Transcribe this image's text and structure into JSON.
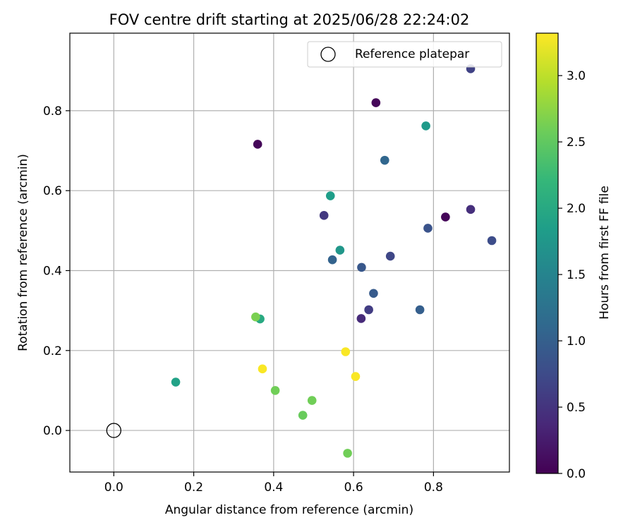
{
  "chart_data": {
    "type": "scatter",
    "title": "FOV centre drift starting at 2025/06/28 22:24:02",
    "xlabel": "Angular distance from reference (arcmin)",
    "ylabel": "Rotation from reference (arcmin)",
    "xlim": [
      -0.11,
      0.99
    ],
    "ylim": [
      -0.104,
      0.994
    ],
    "xticks": [
      0.0,
      0.2,
      0.4,
      0.6,
      0.8
    ],
    "xtick_labels": [
      "0.0",
      "0.2",
      "0.4",
      "0.6",
      "0.8"
    ],
    "yticks": [
      0.0,
      0.2,
      0.4,
      0.6,
      0.8
    ],
    "ytick_labels": [
      "0.0",
      "0.2",
      "0.4",
      "0.6",
      "0.8"
    ],
    "grid": true,
    "legend_position": "top-right",
    "legend_entries": [
      "Reference platepar"
    ],
    "reference_point": {
      "x": 0.0,
      "y": 0.0,
      "label": "Reference platepar"
    },
    "colormap": "viridis",
    "colorbar": {
      "label": "Hours from first FF file",
      "range": [
        0.0,
        3.32
      ],
      "ticks": [
        0.0,
        0.5,
        1.0,
        1.5,
        2.0,
        2.5,
        3.0
      ],
      "tick_labels": [
        "0.0",
        "0.5",
        "1.0",
        "1.5",
        "2.0",
        "2.5",
        "3.0"
      ]
    },
    "points": [
      {
        "x": 0.36,
        "y": 0.716,
        "c": 0.05
      },
      {
        "x": 0.656,
        "y": 0.82,
        "c": 0.05
      },
      {
        "x": 0.83,
        "y": 0.534,
        "c": 0.05
      },
      {
        "x": 0.893,
        "y": 0.553,
        "c": 0.45
      },
      {
        "x": 0.619,
        "y": 0.28,
        "c": 0.4
      },
      {
        "x": 0.526,
        "y": 0.538,
        "c": 0.55
      },
      {
        "x": 0.638,
        "y": 0.302,
        "c": 0.6
      },
      {
        "x": 0.893,
        "y": 0.905,
        "c": 0.65
      },
      {
        "x": 0.692,
        "y": 0.436,
        "c": 0.7
      },
      {
        "x": 0.946,
        "y": 0.475,
        "c": 0.78
      },
      {
        "x": 0.786,
        "y": 0.506,
        "c": 0.85
      },
      {
        "x": 0.62,
        "y": 0.408,
        "c": 0.9
      },
      {
        "x": 0.65,
        "y": 0.343,
        "c": 0.95
      },
      {
        "x": 0.766,
        "y": 0.302,
        "c": 1.0
      },
      {
        "x": 0.547,
        "y": 0.427,
        "c": 1.05
      },
      {
        "x": 0.678,
        "y": 0.676,
        "c": 1.1
      },
      {
        "x": 0.566,
        "y": 0.451,
        "c": 1.75
      },
      {
        "x": 0.542,
        "y": 0.587,
        "c": 1.85
      },
      {
        "x": 0.781,
        "y": 0.762,
        "c": 1.8
      },
      {
        "x": 0.155,
        "y": 0.121,
        "c": 1.9
      },
      {
        "x": 0.366,
        "y": 0.279,
        "c": 2.0
      },
      {
        "x": 0.355,
        "y": 0.284,
        "c": 2.65
      },
      {
        "x": 0.404,
        "y": 0.1,
        "c": 2.6
      },
      {
        "x": 0.496,
        "y": 0.075,
        "c": 2.6
      },
      {
        "x": 0.473,
        "y": 0.038,
        "c": 2.55
      },
      {
        "x": 0.585,
        "y": -0.057,
        "c": 2.6
      },
      {
        "x": 0.372,
        "y": 0.154,
        "c": 3.3
      },
      {
        "x": 0.58,
        "y": 0.197,
        "c": 3.3
      },
      {
        "x": 0.605,
        "y": 0.135,
        "c": 3.3
      }
    ]
  }
}
